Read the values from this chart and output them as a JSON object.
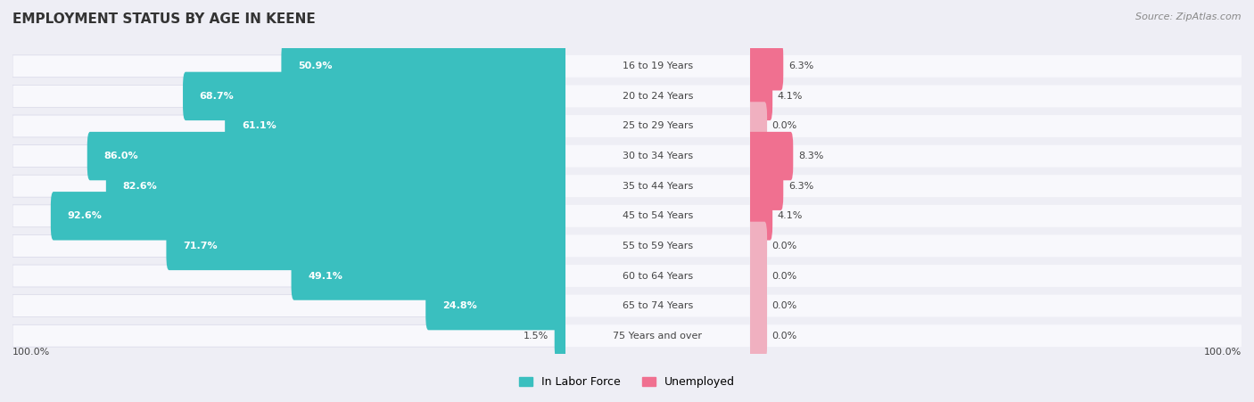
{
  "title": "EMPLOYMENT STATUS BY AGE IN KEENE",
  "source": "Source: ZipAtlas.com",
  "categories": [
    "16 to 19 Years",
    "20 to 24 Years",
    "25 to 29 Years",
    "30 to 34 Years",
    "35 to 44 Years",
    "45 to 54 Years",
    "55 to 59 Years",
    "60 to 64 Years",
    "65 to 74 Years",
    "75 Years and over"
  ],
  "labor_force": [
    50.9,
    68.7,
    61.1,
    86.0,
    82.6,
    92.6,
    71.7,
    49.1,
    24.8,
    1.5
  ],
  "unemployed": [
    6.3,
    4.1,
    0.0,
    8.3,
    6.3,
    4.1,
    0.0,
    0.0,
    0.0,
    0.0
  ],
  "labor_color": "#3abfbf",
  "unemployed_color": "#f07090",
  "unemployed_color_light": "#f0b0c0",
  "bg_color": "#eeeef5",
  "row_bg_color": "#f8f8fc",
  "text_color_dark": "#444444",
  "text_color_white": "#ffffff",
  "axis_label_left": "100.0%",
  "axis_label_right": "100.0%",
  "legend_left": "In Labor Force",
  "legend_right": "Unemployed",
  "lf_threshold_inside": 15.0,
  "max_lf": 100.0,
  "max_unemp": 15.0
}
